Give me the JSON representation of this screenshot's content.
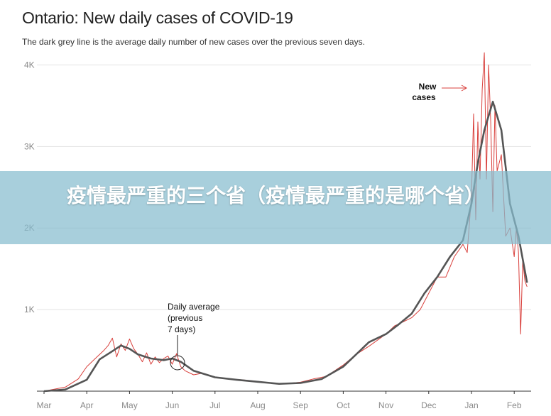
{
  "header": {
    "title": "Ontario: New daily cases of COVID-19",
    "subtitle": "The dark grey line is the average daily number of new cases over the previous seven days."
  },
  "banner": {
    "text": "疫情最严重的三个省（疫情最严重的是哪个省）"
  },
  "annotations": {
    "new_cases_1": "New",
    "new_cases_2": "cases",
    "avg_1": "Daily average",
    "avg_2": "(previous",
    "avg_3": "7 days)"
  },
  "colors": {
    "daily": "#d9403c",
    "average": "#555555",
    "grid": "#e2e2e2",
    "banner": "#87bcce"
  },
  "chart_data": {
    "type": "line",
    "title": "Ontario: New daily cases of COVID-19",
    "subtitle": "The dark grey line is the average daily number of new cases over the previous seven days.",
    "xlabel": "",
    "ylabel": "",
    "x_ticks": [
      "Mar",
      "Apr",
      "May",
      "Jun",
      "Jul",
      "Aug",
      "Sep",
      "Oct",
      "Nov",
      "Dec",
      "Jan",
      "Feb"
    ],
    "y_ticks": [
      "1K",
      "2K",
      "3K",
      "4K"
    ],
    "y_tick_values": [
      1000,
      2000,
      3000,
      4000
    ],
    "ylim": [
      0,
      4100
    ],
    "x_range_months": [
      0,
      11.3
    ],
    "grid": true,
    "legend": "none",
    "series": [
      {
        "kind": "daily",
        "x": [
          0,
          0.5,
          0.8,
          1.0,
          1.2,
          1.4,
          1.5,
          1.6,
          1.7,
          1.8,
          1.9,
          2.0,
          2.1,
          2.2,
          2.3,
          2.4,
          2.5,
          2.6,
          2.7,
          2.8,
          2.9,
          3.0,
          3.1,
          3.2,
          3.3,
          3.5,
          3.7,
          4.0,
          4.3,
          4.6,
          5.0,
          5.3,
          5.6,
          6.0,
          6.3,
          6.6,
          7.0,
          7.3,
          7.6,
          8.0,
          8.2,
          8.4,
          8.6,
          8.8,
          9.0,
          9.2,
          9.4,
          9.6,
          9.8,
          9.9,
          10.0,
          10.05,
          10.1,
          10.15,
          10.2,
          10.25,
          10.3,
          10.35,
          10.4,
          10.45,
          10.5,
          10.55,
          10.6,
          10.7,
          10.8,
          10.9,
          11.0,
          11.05,
          11.1,
          11.15,
          11.2,
          11.25,
          11.3
        ],
        "y": [
          0,
          50,
          150,
          300,
          400,
          500,
          560,
          650,
          420,
          580,
          500,
          640,
          520,
          450,
          360,
          470,
          330,
          420,
          350,
          400,
          430,
          330,
          460,
          300,
          250,
          200,
          220,
          170,
          150,
          140,
          120,
          100,
          90,
          110,
          150,
          180,
          320,
          450,
          550,
          700,
          800,
          850,
          900,
          1000,
          1200,
          1400,
          1400,
          1650,
          1800,
          1700,
          2400,
          3400,
          2100,
          3300,
          2600,
          3700,
          4150,
          2600,
          4000,
          3300,
          2200,
          3500,
          2700,
          2900,
          1900,
          2000,
          1650,
          2000,
          1700,
          700,
          1600,
          1350,
          1280
        ]
      },
      {
        "kind": "average",
        "x": [
          0,
          0.5,
          1.0,
          1.3,
          1.6,
          1.8,
          2.0,
          2.2,
          2.5,
          2.8,
          3.0,
          3.2,
          3.5,
          4.0,
          4.5,
          5.0,
          5.5,
          6.0,
          6.5,
          7.0,
          7.3,
          7.6,
          8.0,
          8.3,
          8.6,
          8.9,
          9.2,
          9.5,
          9.8,
          10.0,
          10.15,
          10.3,
          10.5,
          10.7,
          10.9,
          11.1,
          11.3
        ],
        "y": [
          0,
          20,
          140,
          390,
          490,
          560,
          520,
          450,
          400,
          380,
          400,
          360,
          250,
          170,
          140,
          115,
          90,
          100,
          150,
          300,
          450,
          600,
          700,
          820,
          950,
          1200,
          1400,
          1650,
          1850,
          2300,
          2800,
          3200,
          3550,
          3200,
          2300,
          1900,
          1330
        ]
      }
    ]
  }
}
